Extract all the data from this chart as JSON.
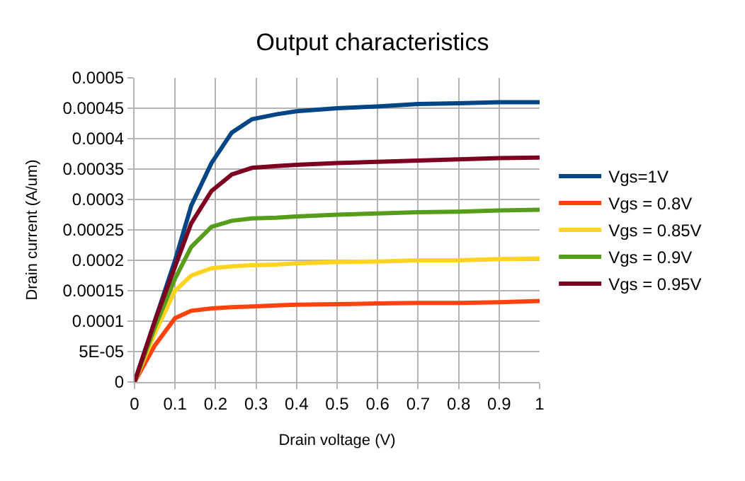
{
  "chart_data": {
    "type": "line",
    "title": "Output characteristics",
    "xlabel": "Drain voltage (V)",
    "ylabel": "Drain current (A/um)",
    "x": [
      0,
      0.05,
      0.1,
      0.14,
      0.19,
      0.24,
      0.29,
      0.35,
      0.4,
      0.5,
      0.6,
      0.7,
      0.8,
      0.9,
      1
    ],
    "series": [
      {
        "name": "Vgs=1V",
        "color": "#004586",
        "values": [
          0,
          0.0001,
          0.0002,
          0.00029,
          0.00036,
          0.00041,
          0.000432,
          0.00044,
          0.000445,
          0.00045,
          0.000453,
          0.000457,
          0.000458,
          0.00046,
          0.00046
        ]
      },
      {
        "name": "Vgs = 0.8V",
        "color": "#ff420e",
        "values": [
          0,
          6e-05,
          0.000105,
          0.000117,
          0.000121,
          0.000123,
          0.000124,
          0.000126,
          0.000127,
          0.000128,
          0.000129,
          0.00013,
          0.00013,
          0.000131,
          0.000133
        ]
      },
      {
        "name": "Vgs = 0.85V",
        "color": "#ffd320",
        "values": [
          0,
          8e-05,
          0.00015,
          0.000175,
          0.000187,
          0.00019,
          0.000192,
          0.000193,
          0.000195,
          0.000197,
          0.000198,
          0.0002,
          0.0002,
          0.000202,
          0.000203
        ]
      },
      {
        "name": "Vgs = 0.9V",
        "color": "#579d1c",
        "values": [
          0,
          9e-05,
          0.00017,
          0.000222,
          0.000255,
          0.000265,
          0.000269,
          0.00027,
          0.000272,
          0.000275,
          0.000277,
          0.000279,
          0.00028,
          0.000282,
          0.000283
        ]
      },
      {
        "name": "Vgs = 0.95V",
        "color": "#7e0021",
        "values": [
          0,
          0.0001,
          0.00019,
          0.000261,
          0.000314,
          0.000341,
          0.000352,
          0.000355,
          0.000357,
          0.00036,
          0.000362,
          0.000364,
          0.000366,
          0.000368,
          0.000369
        ]
      }
    ],
    "xlim": [
      0,
      1
    ],
    "xticks": [
      0,
      0.1,
      0.2,
      0.3,
      0.4,
      0.5,
      0.6,
      0.7,
      0.8,
      0.9,
      1
    ],
    "ylim": [
      0,
      0.0005
    ],
    "yticks": [
      0,
      {
        "value": 5e-05,
        "label": "5E-05"
      },
      0.0001,
      0.00015,
      0.0002,
      0.00025,
      0.0003,
      0.00035,
      0.0004,
      0.00045,
      0.0005
    ],
    "grid": true,
    "legend": "right",
    "marker": "none",
    "line_style": "solid"
  }
}
